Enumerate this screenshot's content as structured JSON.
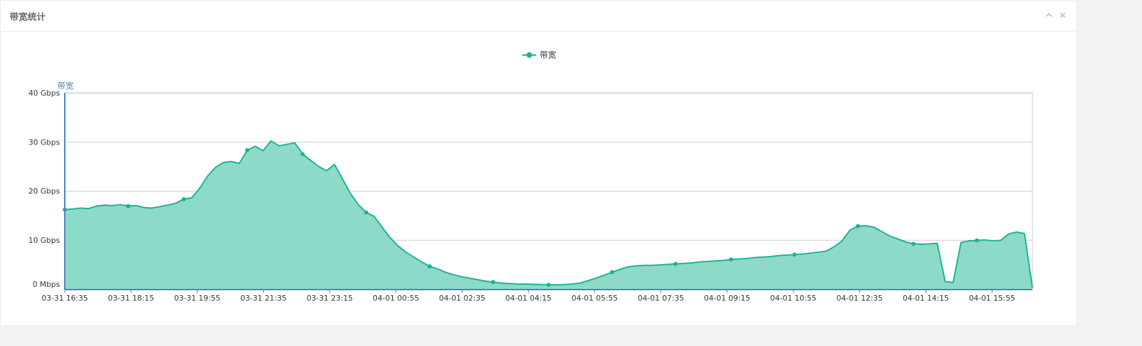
{
  "panel": {
    "title": "带宽统计",
    "collapse_icon": "chevron-up-icon",
    "close_icon": "close-icon"
  },
  "chart_data": {
    "type": "area",
    "legend": {
      "label": "带宽",
      "placement": "top-center"
    },
    "ylabel": "带宽",
    "y_unit_note": "Gbps",
    "ylim": [
      0,
      40
    ],
    "y_ticks": [
      {
        "value": 0,
        "label": "0 Mbps"
      },
      {
        "value": 10,
        "label": "10 Gbps"
      },
      {
        "value": 20,
        "label": "20 Gbps"
      },
      {
        "value": 30,
        "label": "30 Gbps"
      },
      {
        "value": 40,
        "label": "40 Gbps"
      }
    ],
    "x_ticks": [
      "03-31 16:35",
      "03-31 18:15",
      "03-31 19:55",
      "03-31 21:35",
      "03-31 23:15",
      "04-01 00:55",
      "04-01 02:35",
      "04-01 04:15",
      "04-01 05:55",
      "04-01 07:35",
      "04-01 09:15",
      "04-01 10:55",
      "04-01 12:35",
      "04-01 14:15",
      "04-01 15:55"
    ],
    "grid": true,
    "colors": {
      "line": "#1ab394",
      "fill": "#8ddac9",
      "axis": "#4f81bd",
      "grid": "#cccccc"
    },
    "series": [
      {
        "name": "带宽",
        "values": [
          16.2,
          16.3,
          16.5,
          16.4,
          16.9,
          17.1,
          17.0,
          17.2,
          16.9,
          17.0,
          16.6,
          16.5,
          16.8,
          17.1,
          17.5,
          18.3,
          18.6,
          20.5,
          23.0,
          24.8,
          25.8,
          26.0,
          25.6,
          28.3,
          29.1,
          28.2,
          30.2,
          29.2,
          29.5,
          29.8,
          27.5,
          26.2,
          25.0,
          24.1,
          25.4,
          22.5,
          19.5,
          17.2,
          15.6,
          14.8,
          12.6,
          10.5,
          8.8,
          7.5,
          6.5,
          5.5,
          4.6,
          4.1,
          3.4,
          2.9,
          2.5,
          2.2,
          1.9,
          1.6,
          1.4,
          1.2,
          1.1,
          1.0,
          1.0,
          0.95,
          0.9,
          0.85,
          0.85,
          0.9,
          1.0,
          1.2,
          1.7,
          2.2,
          2.8,
          3.4,
          4.0,
          4.5,
          4.7,
          4.8,
          4.8,
          4.9,
          5.0,
          5.1,
          5.2,
          5.3,
          5.5,
          5.6,
          5.7,
          5.8,
          6.0,
          6.1,
          6.2,
          6.4,
          6.5,
          6.6,
          6.8,
          6.9,
          7.0,
          7.1,
          7.3,
          7.5,
          7.7,
          8.6,
          9.8,
          12.0,
          12.8,
          12.9,
          12.6,
          11.7,
          10.8,
          10.2,
          9.6,
          9.2,
          9.1,
          9.2,
          9.3,
          1.5,
          1.3,
          9.5,
          9.8,
          9.9,
          10.0,
          9.8,
          9.9,
          11.2,
          11.6,
          11.3,
          0.2
        ]
      }
    ],
    "marker_indices": [
      0,
      8,
      15,
      23,
      30,
      38,
      46,
      54,
      61,
      69,
      77,
      84,
      92,
      100,
      107,
      115
    ]
  }
}
